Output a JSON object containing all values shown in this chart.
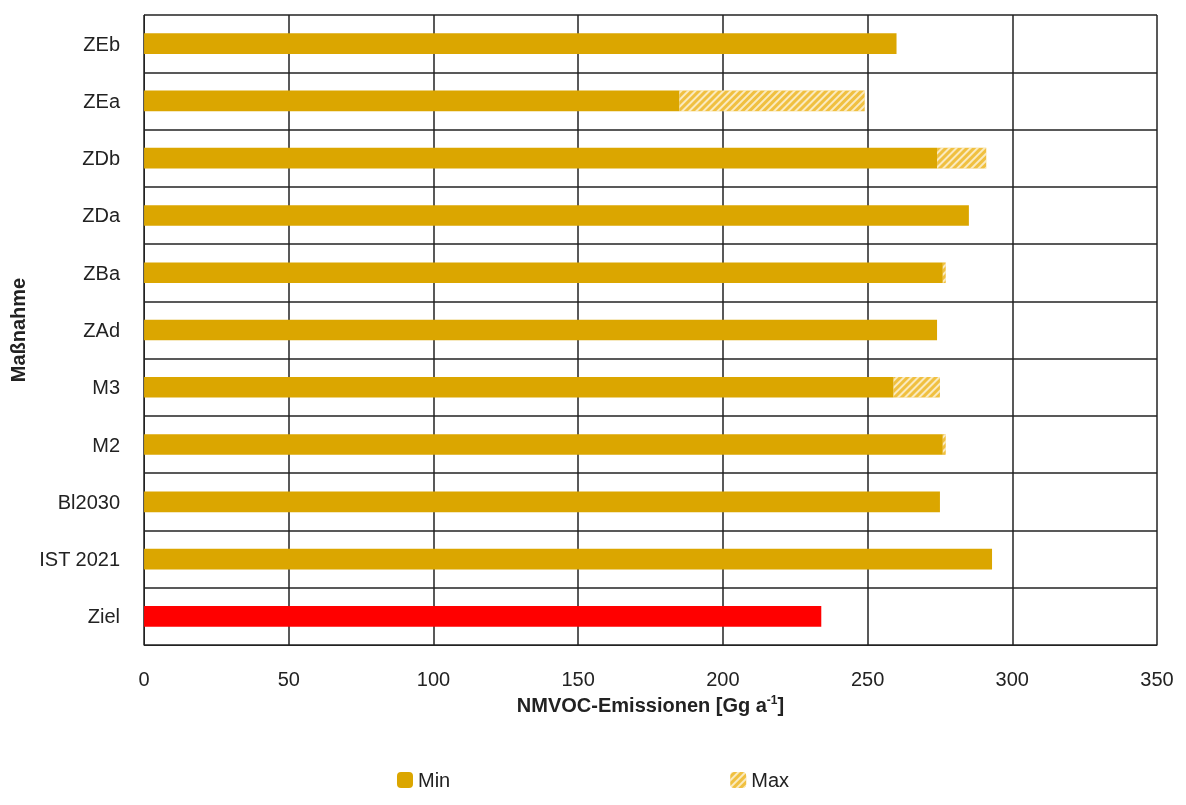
{
  "chart_data": {
    "type": "bar",
    "orientation": "horizontal",
    "stacked": true,
    "xlabel": "NMVOC-Emissionen [Gg a$^{-1}$]",
    "ylabel": "Maßnahme",
    "categories": [
      "ZEb",
      "ZEa",
      "ZDb",
      "ZDa",
      "ZBa",
      "ZAd",
      "M3",
      "M2",
      "Bl2030",
      "IST 2021",
      "Ziel"
    ],
    "series": [
      {
        "name": "Min",
        "color": "#dba600",
        "colors": [
          "#dba600",
          "#dba600",
          "#dba600",
          "#dba600",
          "#dba600",
          "#dba600",
          "#dba600",
          "#dba600",
          "#dba600",
          "#dba600",
          "#ff0000"
        ],
        "values": [
          260,
          185,
          274,
          285,
          276,
          274,
          259,
          276,
          275,
          293,
          234
        ]
      },
      {
        "name": "Max",
        "color": "#f0c040",
        "values": [
          null,
          64,
          17,
          null,
          1,
          null,
          16,
          1,
          null,
          null,
          null
        ]
      }
    ],
    "xlim": [
      0,
      350
    ],
    "xticks": [
      0,
      50,
      100,
      150,
      200,
      250,
      300,
      350
    ],
    "grid": true,
    "legend": "bottom"
  }
}
